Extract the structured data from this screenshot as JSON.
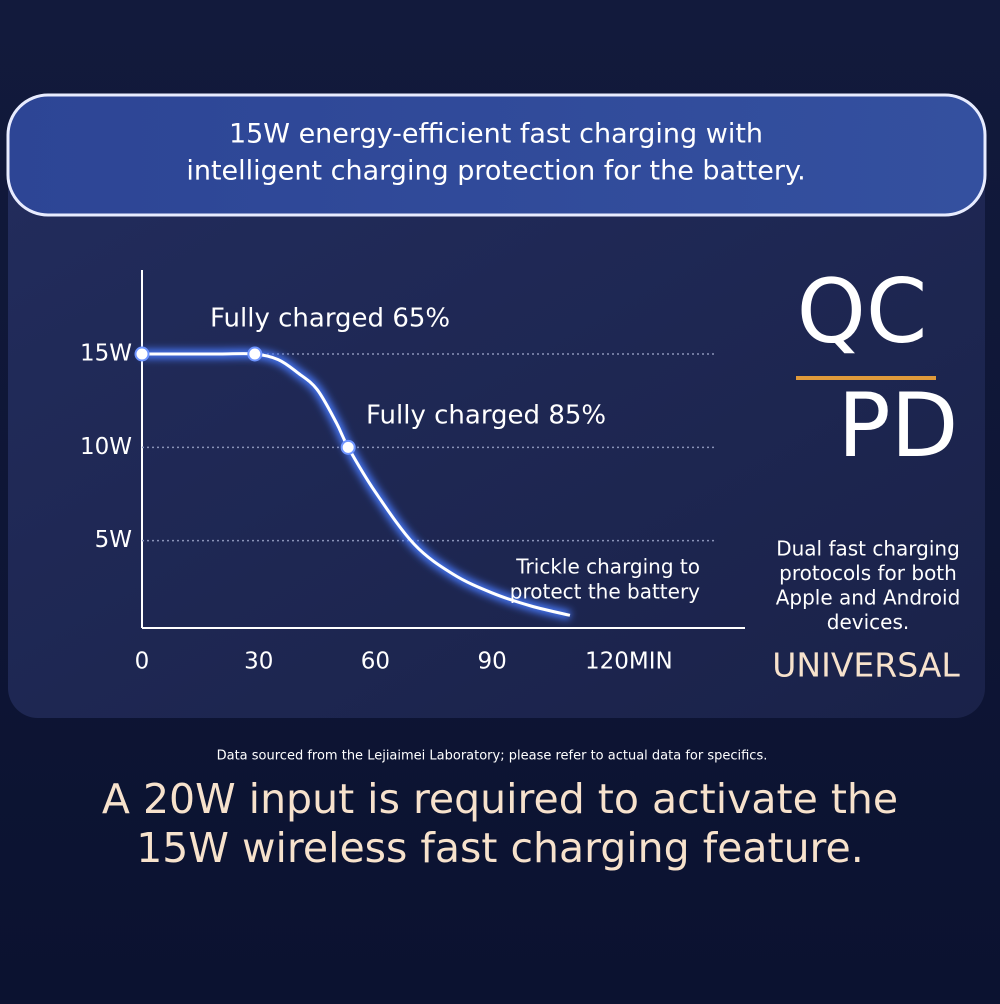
{
  "header": {
    "lines": [
      "15W energy-efficient fast charging with",
      "intelligent charging protection for the battery."
    ]
  },
  "chart_data": {
    "type": "line",
    "x": [
      0,
      10,
      20,
      29,
      35,
      40,
      45,
      50,
      53,
      60,
      70,
      80,
      90,
      100,
      110
    ],
    "series": [
      {
        "color": "#ffffff",
        "values": [
          15,
          15,
          15,
          15,
          14.7,
          14.0,
          13.1,
          11.3,
          10,
          7.6,
          4.8,
          3.2,
          2.2,
          1.5,
          1.0
        ]
      }
    ],
    "marked_points": [
      0,
      3,
      8
    ],
    "xlim": [
      0,
      155
    ],
    "ylim": [
      0,
      19.5
    ],
    "xticks": [
      0,
      30,
      60,
      90,
      {
        "value": 120,
        "label": "120MIN"
      }
    ],
    "yticks": [
      {
        "value": 5,
        "label": "5W"
      },
      {
        "value": 10,
        "label": "10W"
      },
      {
        "value": 15,
        "label": "15W"
      }
    ],
    "grid": true,
    "annotations": [
      {
        "lines": [
          "Fully charged 65%"
        ]
      },
      {
        "lines": [
          "Fully charged 85%"
        ]
      },
      {
        "lines": [
          "Trickle charging to",
          "protect the battery"
        ]
      }
    ]
  },
  "side": {
    "logo_top": "QC",
    "logo_bottom": "PD",
    "description": [
      "Dual fast charging",
      "protocols for both",
      "Apple and Android",
      "devices."
    ],
    "tag": "UNIVERSAL"
  },
  "footnote": "Data sourced from the Lejiaimei Laboratory; please refer to actual data for specifics.",
  "headline": {
    "lines": [
      "A 20W input is required to activate the",
      "15W wireless fast charging feature."
    ]
  }
}
